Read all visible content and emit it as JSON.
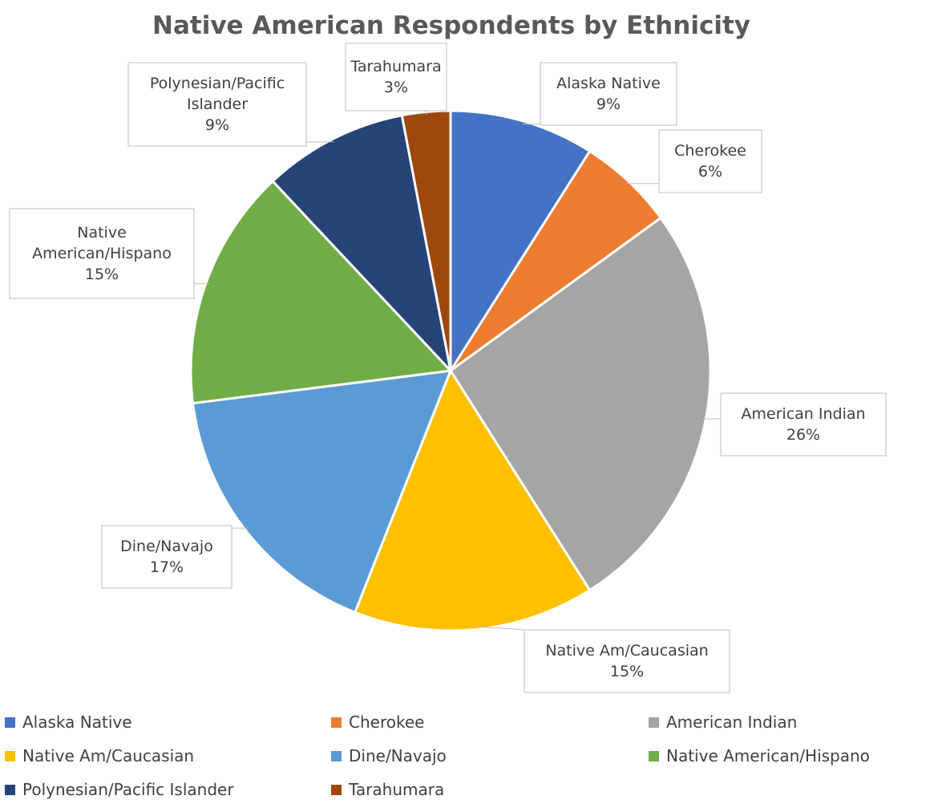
{
  "chart_data": {
    "type": "pie",
    "title": "Native American Respondents by Ethnicity",
    "slices": [
      {
        "name": "Alaska Native",
        "value": 9,
        "label": "9%",
        "color": "#4472c4"
      },
      {
        "name": "Cherokee",
        "value": 6,
        "label": "6%",
        "color": "#ed7d31"
      },
      {
        "name": "American Indian",
        "value": 26,
        "label": "26%",
        "color": "#a5a5a5"
      },
      {
        "name": "Native Am/Caucasian",
        "value": 15,
        "label": "15%",
        "color": "#ffc000"
      },
      {
        "name": "Dine/Navajo",
        "value": 17,
        "label": "17%",
        "color": "#5b9bd5"
      },
      {
        "name": "Native American/Hispano",
        "value": 15,
        "label": "15%",
        "color": "#70ad47"
      },
      {
        "name": "Polynesian/Pacific Islander",
        "value": 9,
        "label": "9%",
        "color": "#264478"
      },
      {
        "name": "Tarahumara",
        "value": 3,
        "label": "3%",
        "color": "#9e480e"
      }
    ],
    "legend_position": "bottom"
  }
}
